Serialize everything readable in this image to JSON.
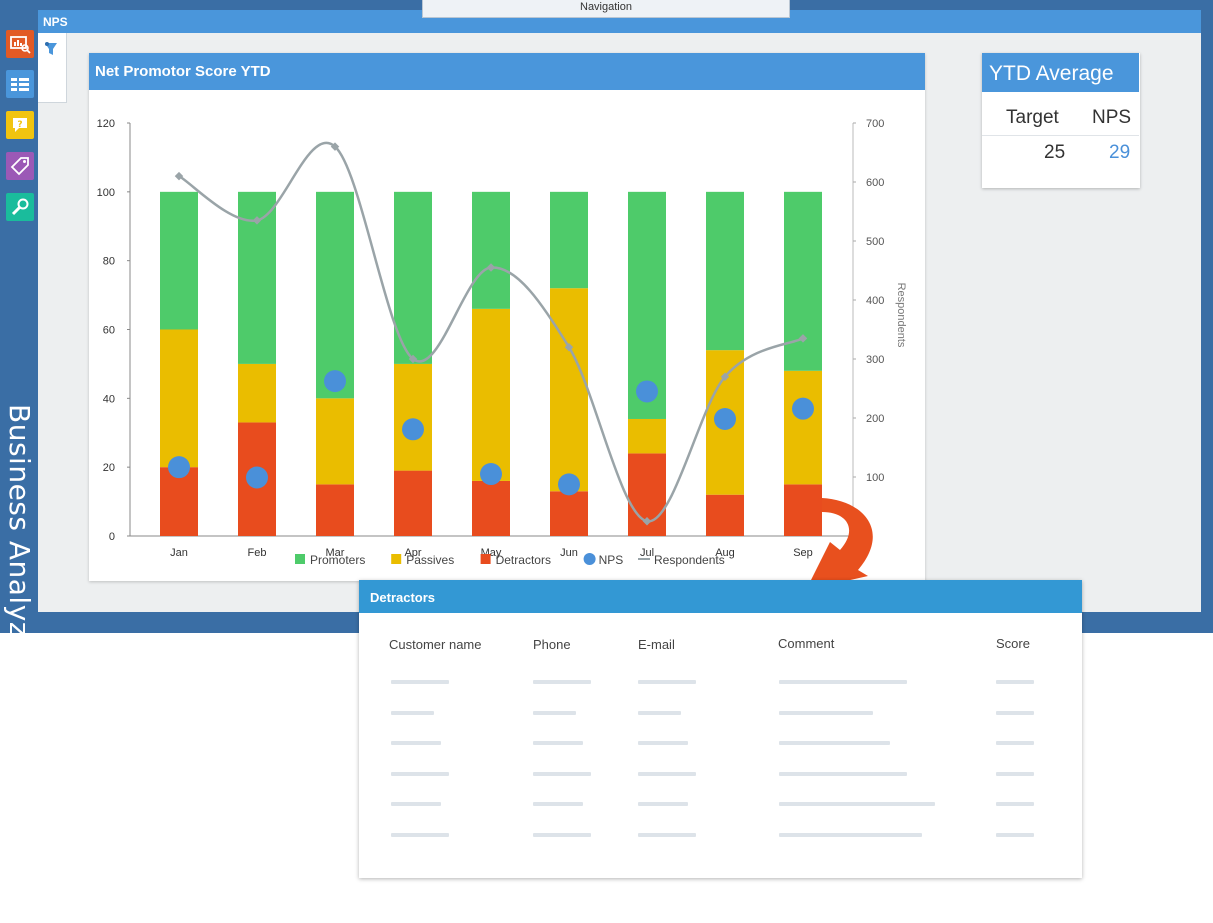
{
  "navigation": {
    "label": "Navigation"
  },
  "brand": {
    "name": "Business Analyze"
  },
  "sidebar": {
    "items": [
      {
        "icon": "chart-search-icon",
        "color": "#e25a25"
      },
      {
        "icon": "list-icon",
        "color": "#4a96db"
      },
      {
        "icon": "question-chat-icon",
        "color": "#f1c40f"
      },
      {
        "icon": "tag-icon",
        "color": "#9b59b6"
      },
      {
        "icon": "wrench-icon",
        "color": "#1abc9c"
      }
    ]
  },
  "page": {
    "title": "NPS"
  },
  "filter": {
    "icon": "filter-icon"
  },
  "chart_data": {
    "type": "bar",
    "title": "Net Promotor Score YTD",
    "categories": [
      "Jan",
      "Feb",
      "Mar",
      "Apr",
      "May",
      "Jun",
      "Jul",
      "Aug",
      "Sep"
    ],
    "series": [
      {
        "name": "Detractors",
        "kind": "stacked-bar",
        "color": "#e84c1e",
        "values": [
          20,
          33,
          15,
          19,
          16,
          13,
          24,
          12,
          15
        ]
      },
      {
        "name": "Passives",
        "kind": "stacked-bar",
        "color": "#eabd00",
        "values": [
          40,
          17,
          25,
          31,
          50,
          59,
          10,
          42,
          33
        ]
      },
      {
        "name": "Promoters",
        "kind": "stacked-bar",
        "color": "#4ecb6a",
        "values": [
          40,
          50,
          60,
          50,
          34,
          28,
          66,
          46,
          52
        ]
      },
      {
        "name": "NPS",
        "kind": "dot",
        "color": "#4a90d9",
        "axis": "left",
        "values": [
          20,
          17,
          45,
          31,
          18,
          15,
          42,
          34,
          37
        ]
      },
      {
        "name": "Respondents",
        "kind": "line",
        "color": "#9aa4a8",
        "axis": "right",
        "values": [
          610,
          535,
          660,
          300,
          455,
          320,
          25,
          270,
          335
        ]
      }
    ],
    "y_left": {
      "min": 0,
      "max": 120,
      "ticks": [
        0,
        20,
        40,
        60,
        80,
        100,
        120
      ]
    },
    "y_right": {
      "min": 0,
      "max": 700,
      "ticks": [
        100,
        200,
        300,
        400,
        500,
        600,
        700
      ],
      "label": "Respondents"
    },
    "grid": false,
    "legend": {
      "position": "bottom",
      "items": [
        "Promoters",
        "Passives",
        "Detractors",
        "NPS",
        "Respondents"
      ]
    }
  },
  "ytd": {
    "title": "YTD Average",
    "target_label": "Target",
    "nps_label": "NPS",
    "target_value": "25",
    "nps_value": "29",
    "nps_color": "#4a90d9"
  },
  "detractors": {
    "title": "Detractors",
    "columns": [
      "Customer name",
      "Phone",
      "E-mail",
      "Comment",
      "Score"
    ],
    "rows_placeholder": true,
    "accent_color": "#e8501e"
  }
}
